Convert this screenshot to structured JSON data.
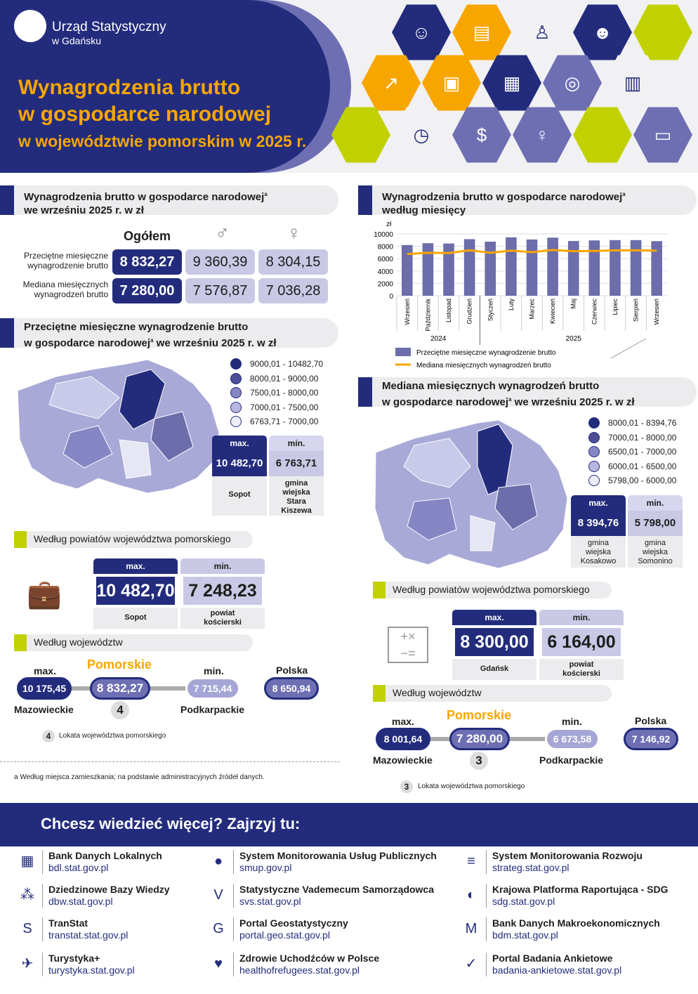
{
  "header": {
    "org_line1": "Urząd Statystyczny",
    "org_line2": "w Gdańsku",
    "title_line1": "Wynagrodzenia brutto",
    "title_line2": "w gospodarce narodowej",
    "title_line3": "w województwie pomorskim w 2025 r."
  },
  "sec1": {
    "title1": "Wynagrodzenia brutto w gospodarce narodowej",
    "sup": "a",
    "title2": "we wrześniu 2025 r. w zł",
    "col_total": "Ogółem",
    "row1_label": "Przeciętne miesięczne wynagrodzenie brutto",
    "row2_label": "Mediana miesięcznych wynagrodzeń brutto",
    "row1": [
      "8 832,27",
      "9 360,39",
      "8 304,15"
    ],
    "row2": [
      "7 280,00",
      "7 576,87",
      "7 036,28"
    ]
  },
  "sec2": {
    "title1": "Przeciętne miesięczne wynagrodzenie brutto",
    "title2": "w gospodarce narodowej",
    "sup": "a",
    "title3": " we wrześniu 2025 r. w zł",
    "legend": [
      "9000,01 - 10482,70",
      "8000,01 -   9000,00",
      "7500,01 -   8000,00",
      "7000,01 -   7500,00",
      "6763,71 -   7000,00"
    ],
    "max_label": "max.",
    "min_label": "min.",
    "gmina_max": "10 482,70",
    "gmina_min": "6 763,71",
    "gmina_max_name": "Sopot",
    "gmina_min_name": "gmina wiejska Stara Kiszewa",
    "powiat_title": "Według powiatów województwa pomorskiego",
    "powiat_max": "10 482,70",
    "powiat_min": "7 248,23",
    "powiat_max_name": "Sopot",
    "powiat_min_name": "powiat kościerski",
    "woj_title": "Według województw",
    "woj_max_label": "max.",
    "woj_max": "10 175,45",
    "woj_max_name": "Mazowieckie",
    "pom_label": "Pomorskie",
    "pom_value": "8 832,27",
    "rank": "4",
    "woj_min_label": "min.",
    "woj_min": "7 715,44",
    "woj_min_name": "Podkarpackie",
    "pl_label": "Polska",
    "pl_value": "8 650,94",
    "rank_note": "Lokata województwa pomorskiego"
  },
  "footnote": "a Według miejsca zamieszkania; na podstawie administracyjnych źródeł danych.",
  "chart_data": {
    "type": "bar",
    "title": "Wynagrodzenia brutto w gospodarce narodowej według miesięcy",
    "ylabel": "zł",
    "ylim": [
      0,
      10000
    ],
    "yticks": [
      "0",
      "2000",
      "4000",
      "6000",
      "8000",
      "10000"
    ],
    "categories": [
      "Wrzesień",
      "Październik",
      "Listopad",
      "Grudzień",
      "Styczeń",
      "Luty",
      "Marzec",
      "Kwiecień",
      "Maj",
      "Czerwiec",
      "Lipiec",
      "Sierpień",
      "Wrzesień"
    ],
    "years": [
      "2024",
      "2025"
    ],
    "series": [
      {
        "name": "Przeciętne miesięczne wynagrodzenie brutto",
        "type": "bar",
        "color": "#6c6daa",
        "values": [
          8200,
          8500,
          8450,
          9150,
          8750,
          9450,
          9100,
          9400,
          8850,
          8950,
          9000,
          9000,
          8832
        ]
      },
      {
        "name": "Mediana miesięcznych wynagrodzeń brutto",
        "type": "line",
        "color": "#f7a600",
        "values": [
          6750,
          6950,
          6900,
          7350,
          6950,
          7300,
          7050,
          7400,
          7200,
          7250,
          7350,
          7350,
          7280
        ]
      }
    ],
    "title1": "Wynagrodzenia brutto w gospodarce narodowej",
    "sup": "a",
    "title2": "według miesięcy"
  },
  "sec3": {
    "title1": "Mediana miesięcznych wynagrodzeń brutto",
    "title2": "w gospodarce narodowej",
    "sup": "a",
    "title3": " we wrześniu 2025 r. w zł",
    "legend": [
      "8000,01 - 8394,76",
      "7000,01 - 8000,00",
      "6500,01 - 7000,00",
      "6000,01 - 6500,00",
      "5798,00 - 6000,00"
    ],
    "gmina_max": "8 394,76",
    "gmina_min": "5 798,00",
    "gmina_max_name": "gmina wiejska Kosakowo",
    "gmina_min_name": "gmina wiejska Somonino",
    "powiat_title": "Według powiatów województwa pomorskiego",
    "powiat_max": "8 300,00",
    "powiat_min": "6 164,00",
    "powiat_max_name": "Gdańsk",
    "powiat_min_name": "powiat kościerski",
    "woj_title": "Według województw",
    "woj_max": "8 001,64",
    "woj_max_name": "Mazowieckie",
    "pom_label": "Pomorskie",
    "pom_value": "7 280,00",
    "rank": "3",
    "woj_min": "6 673,58",
    "woj_min_name": "Podkarpackie",
    "pl_label": "Polska",
    "pl_value": "7 146,92",
    "rank_note": "Lokata województwa pomorskiego"
  },
  "footer": {
    "title": "Chcesz wiedzieć więcej? Zajrzyj tu:",
    "links": [
      {
        "name": "Bank Danych Lokalnych",
        "url": "bdl.stat.gov.pl"
      },
      {
        "name": "System Monitorowania Usług Publicznych",
        "url": "smup.gov.pl"
      },
      {
        "name": "System Monitorowania Rozwoju",
        "url": "strateg.stat.gov.pl"
      },
      {
        "name": "Dziedzinowe Bazy Wiedzy",
        "url": "dbw.stat.gov.pl"
      },
      {
        "name": "Statystyczne Vademecum Samorządowca",
        "url": "svs.stat.gov.pl"
      },
      {
        "name": "Krajowa Platforma Raportująca - SDG",
        "url": "sdg.stat.gov.pl"
      },
      {
        "name": "TranStat",
        "url": "transtat.stat.gov.pl"
      },
      {
        "name": "Portal Geostatystyczny",
        "url": "portal.geo.stat.gov.pl"
      },
      {
        "name": "Bank Danych Makroekonomicznych",
        "url": "bdm.stat.gov.pl"
      },
      {
        "name": "Turystyka+",
        "url": "turystyka.stat.gov.pl"
      },
      {
        "name": "Zdrowie Uchodźców w Polsce",
        "url": "healthofrefugees.stat.gov.pl"
      },
      {
        "name": "Portal Badania Ankietowe",
        "url": "badania-ankietowe.stat.gov.pl"
      }
    ]
  }
}
